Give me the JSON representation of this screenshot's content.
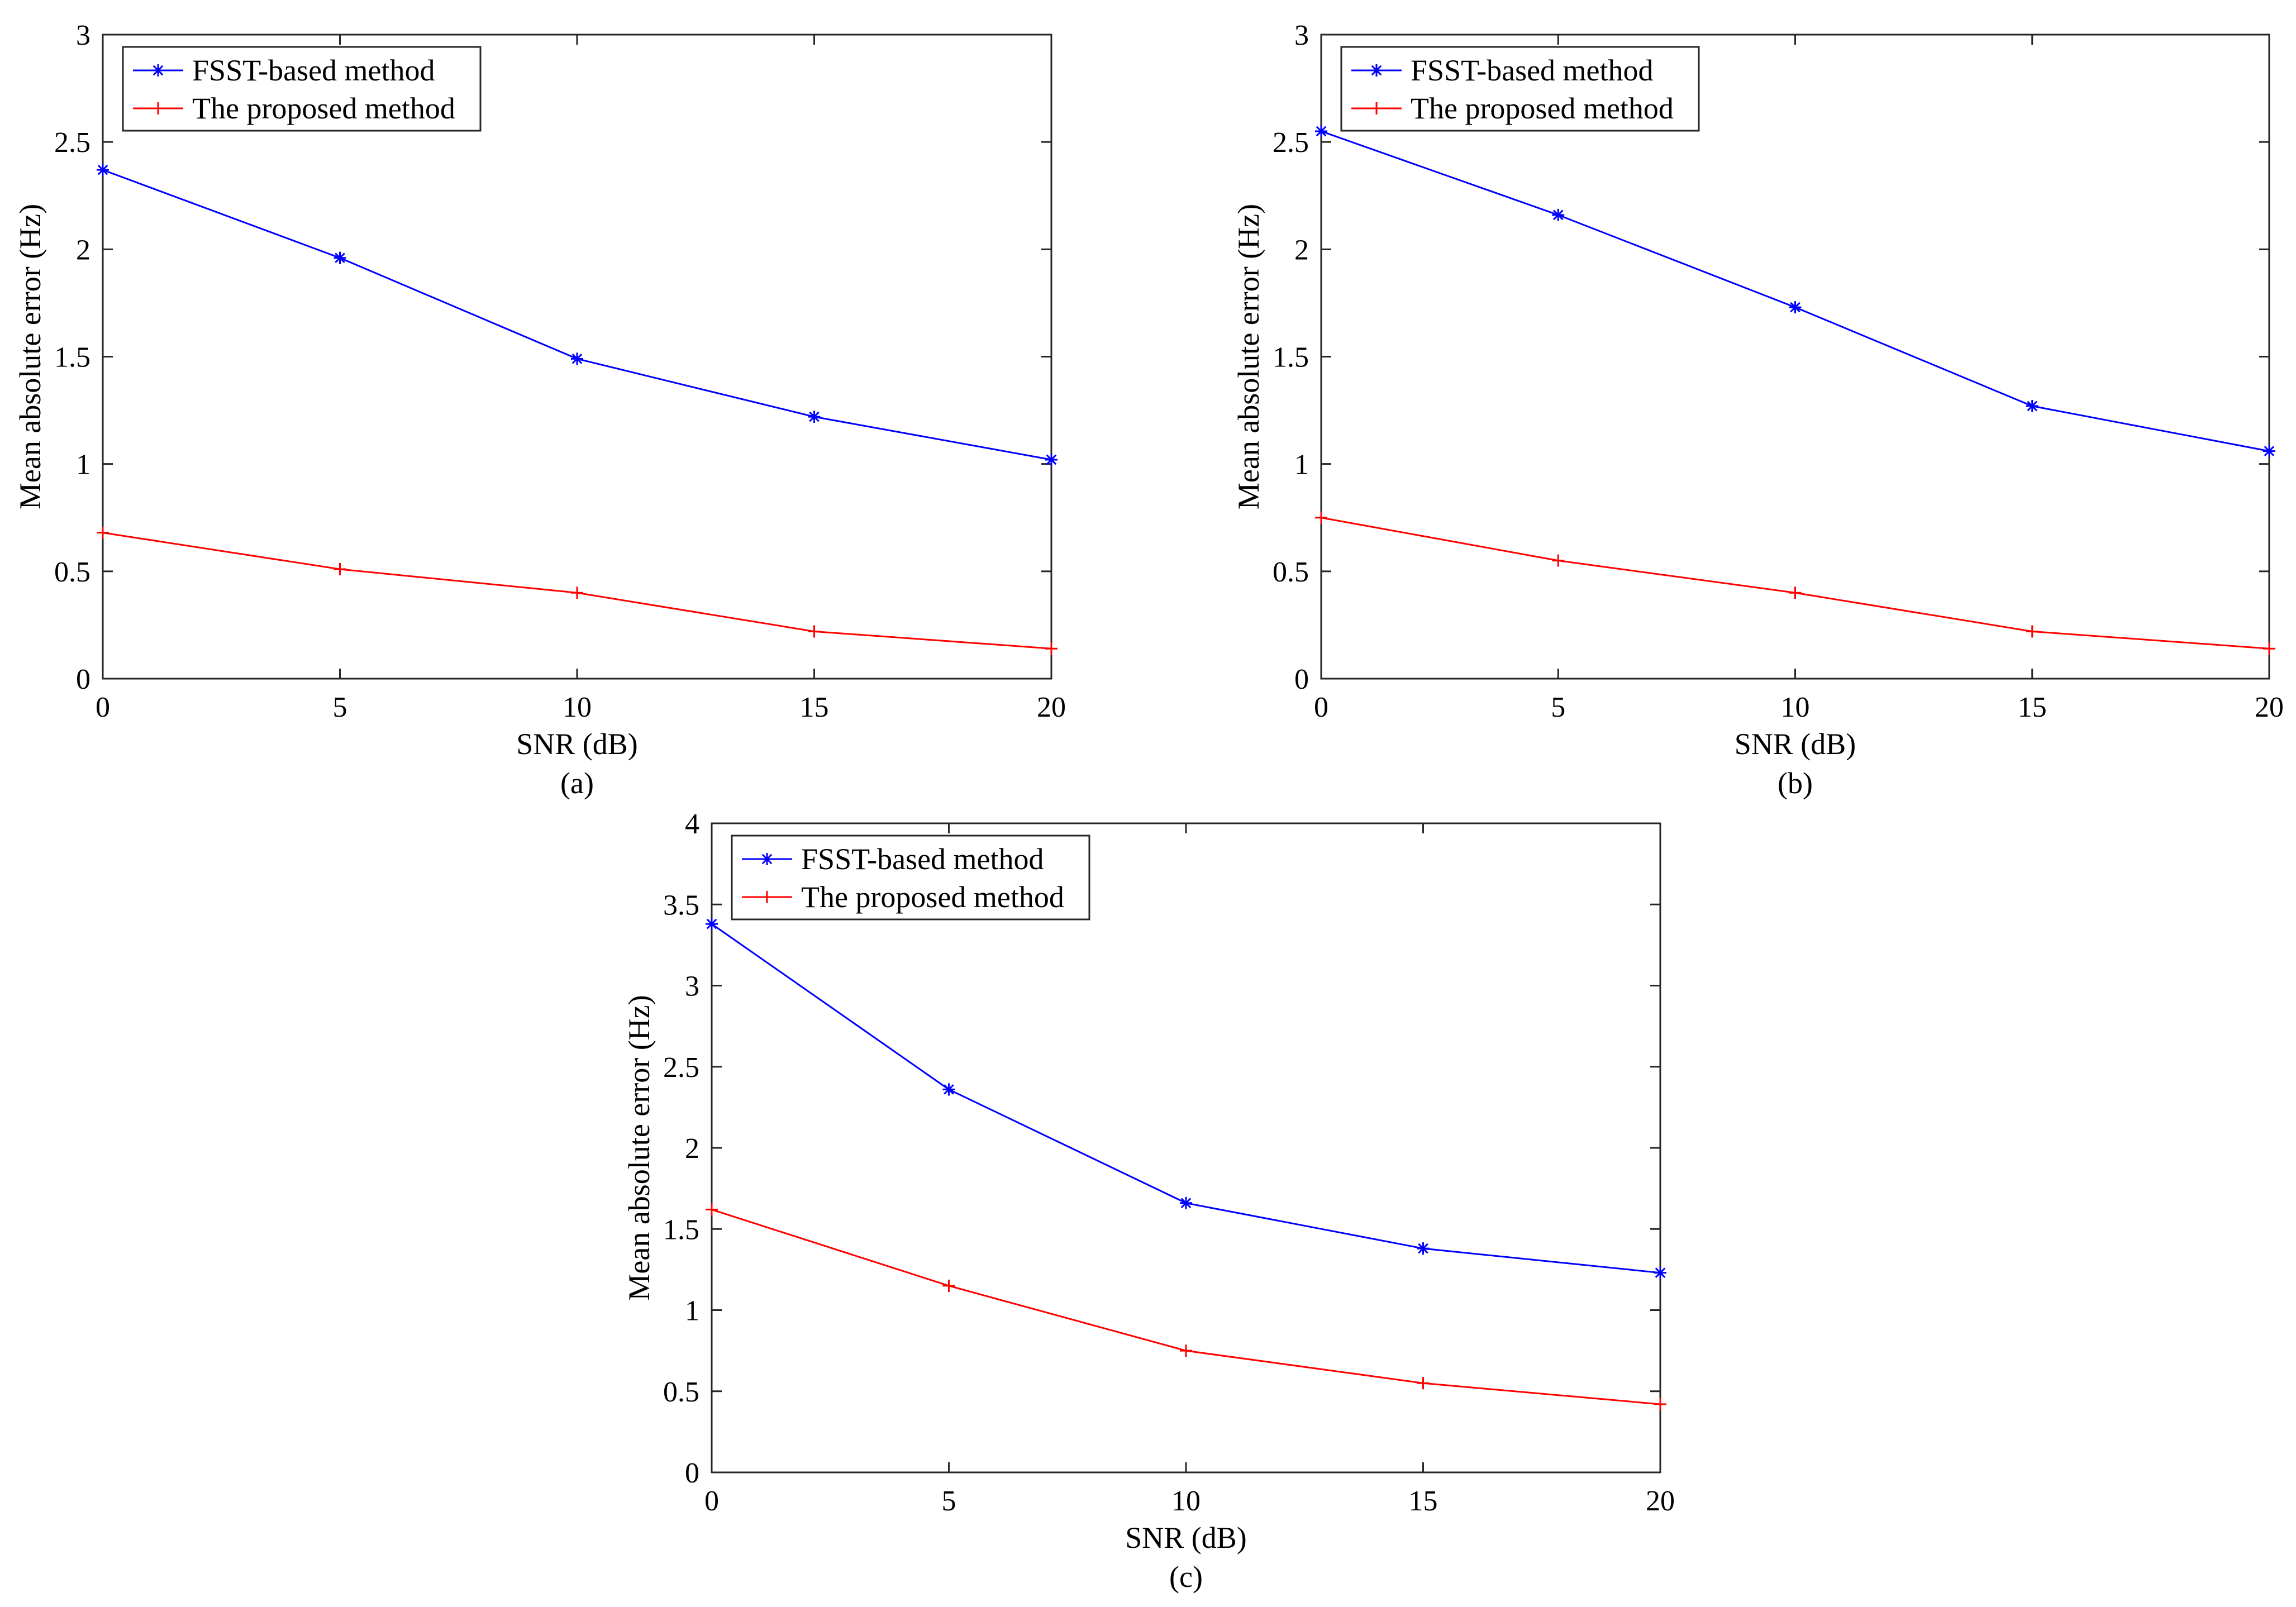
{
  "chart_data": [
    {
      "type": "line",
      "caption": "(a)",
      "xlabel": "SNR (dB)",
      "ylabel": "Mean absolute error (Hz)",
      "xlim": [
        0,
        20
      ],
      "ylim": [
        0,
        3
      ],
      "xticks": [
        0,
        5,
        10,
        15,
        20
      ],
      "yticks": [
        0,
        0.5,
        1,
        1.5,
        2,
        2.5,
        3
      ],
      "x": [
        0,
        5,
        10,
        15,
        20
      ],
      "legend_position": "top-left",
      "series": [
        {
          "name": "FSST-based method",
          "color": "#0000ff",
          "marker": "star",
          "values": [
            2.37,
            1.96,
            1.49,
            1.22,
            1.02
          ]
        },
        {
          "name": "The proposed method",
          "color": "#ff0000",
          "marker": "plus",
          "values": [
            0.68,
            0.51,
            0.4,
            0.22,
            0.14
          ]
        }
      ]
    },
    {
      "type": "line",
      "caption": "(b)",
      "xlabel": "SNR (dB)",
      "ylabel": "Mean absolute error (Hz)",
      "xlim": [
        0,
        20
      ],
      "ylim": [
        0,
        3
      ],
      "xticks": [
        0,
        5,
        10,
        15,
        20
      ],
      "yticks": [
        0,
        0.5,
        1,
        1.5,
        2,
        2.5,
        3
      ],
      "x": [
        0,
        5,
        10,
        15,
        20
      ],
      "legend_position": "top-left",
      "series": [
        {
          "name": "FSST-based method",
          "color": "#0000ff",
          "marker": "star",
          "values": [
            2.55,
            2.16,
            1.73,
            1.27,
            1.06
          ]
        },
        {
          "name": "The proposed method",
          "color": "#ff0000",
          "marker": "plus",
          "values": [
            0.75,
            0.55,
            0.4,
            0.22,
            0.14
          ]
        }
      ]
    },
    {
      "type": "line",
      "caption": "(c)",
      "xlabel": "SNR (dB)",
      "ylabel": "Mean absolute error (Hz)",
      "xlim": [
        0,
        20
      ],
      "ylim": [
        0,
        4
      ],
      "xticks": [
        0,
        5,
        10,
        15,
        20
      ],
      "yticks": [
        0,
        0.5,
        1,
        1.5,
        2,
        2.5,
        3,
        3.5,
        4
      ],
      "x": [
        0,
        5,
        10,
        15,
        20
      ],
      "legend_position": "top-left",
      "series": [
        {
          "name": "FSST-based method",
          "color": "#0000ff",
          "marker": "star",
          "values": [
            3.38,
            2.36,
            1.66,
            1.38,
            1.23
          ]
        },
        {
          "name": "The proposed method",
          "color": "#ff0000",
          "marker": "plus",
          "values": [
            1.62,
            1.15,
            0.75,
            0.55,
            0.42
          ]
        }
      ]
    }
  ]
}
